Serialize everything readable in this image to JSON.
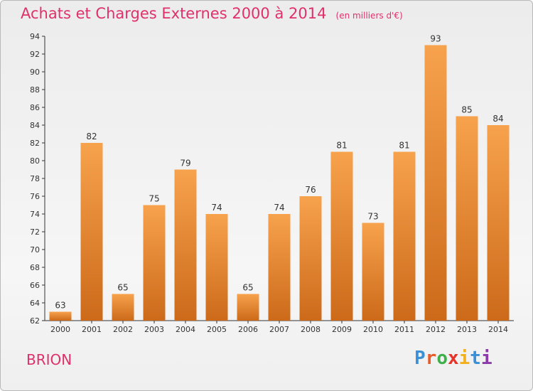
{
  "chart_data": {
    "type": "bar",
    "title": "Achats et Charges Externes 2000 à 2014",
    "subtitle": "(en milliers d'€)",
    "xlabel": "",
    "ylabel": "",
    "categories": [
      "2000",
      "2001",
      "2002",
      "2003",
      "2004",
      "2005",
      "2006",
      "2007",
      "2008",
      "2009",
      "2010",
      "2011",
      "2012",
      "2013",
      "2014"
    ],
    "values": [
      63,
      82,
      65,
      75,
      79,
      74,
      65,
      74,
      76,
      81,
      73,
      81,
      93,
      85,
      84
    ],
    "ylim": [
      62,
      94
    ],
    "yticks": [
      62,
      64,
      66,
      68,
      70,
      72,
      74,
      76,
      78,
      80,
      82,
      84,
      86,
      88,
      90,
      92,
      94
    ],
    "grid": false,
    "legend": "none",
    "bar_color_top": "#f7a24d",
    "bar_color_bottom": "#cc6a1a"
  },
  "footer": {
    "place": "BRION",
    "brand_letters": [
      "P",
      "r",
      "o",
      "x",
      "i",
      "t",
      "i"
    ],
    "brand_colors": [
      "#3b8fd6",
      "#e85b2a",
      "#3db04a",
      "#e8332a",
      "#f2b01e",
      "#3b8fd6",
      "#8a3ba8"
    ]
  },
  "colors": {
    "accent": "#e0306a",
    "axis": "#333333"
  }
}
